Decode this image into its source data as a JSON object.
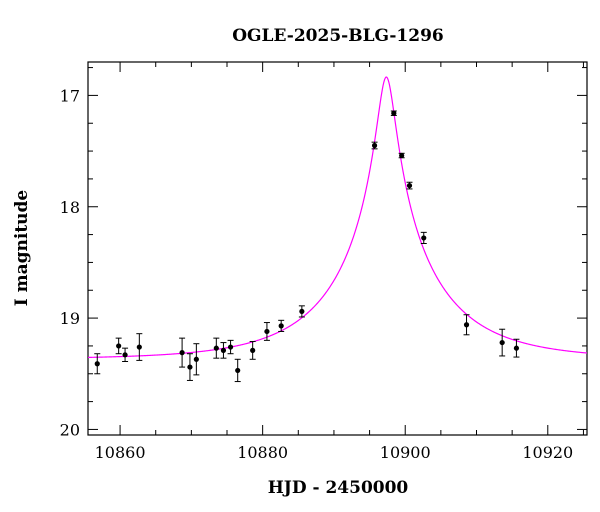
{
  "chart_data": {
    "type": "scatter",
    "title": "OGLE-2025-BLG-1296",
    "xlabel": "HJD - 2450000",
    "ylabel": "I magnitude",
    "xlim": [
      10855.5,
      10925.5
    ],
    "ylim": [
      20.05,
      16.7
    ],
    "y_inverted": true,
    "x_ticks": [
      10860,
      10880,
      10900,
      10920
    ],
    "y_ticks": [
      17,
      18,
      19,
      20
    ],
    "x_minor_step": 5,
    "y_minor_step": 0.25,
    "grid": false,
    "series": [
      {
        "kind": "points_with_errorbars",
        "color": "#000000",
        "points": [
          {
            "x": 10856.8,
            "y": 19.41,
            "err": 0.09
          },
          {
            "x": 10859.8,
            "y": 19.25,
            "err": 0.07
          },
          {
            "x": 10860.7,
            "y": 19.33,
            "err": 0.06
          },
          {
            "x": 10862.7,
            "y": 19.26,
            "err": 0.12
          },
          {
            "x": 10868.7,
            "y": 19.31,
            "err": 0.13
          },
          {
            "x": 10869.8,
            "y": 19.44,
            "err": 0.12
          },
          {
            "x": 10870.7,
            "y": 19.37,
            "err": 0.14
          },
          {
            "x": 10873.5,
            "y": 19.27,
            "err": 0.09
          },
          {
            "x": 10874.5,
            "y": 19.29,
            "err": 0.07
          },
          {
            "x": 10875.5,
            "y": 19.26,
            "err": 0.06
          },
          {
            "x": 10876.5,
            "y": 19.47,
            "err": 0.1
          },
          {
            "x": 10878.6,
            "y": 19.29,
            "err": 0.08
          },
          {
            "x": 10880.6,
            "y": 19.12,
            "err": 0.08
          },
          {
            "x": 10882.6,
            "y": 19.07,
            "err": 0.05
          },
          {
            "x": 10885.5,
            "y": 18.94,
            "err": 0.05
          },
          {
            "x": 10895.7,
            "y": 17.45,
            "err": 0.03
          },
          {
            "x": 10898.4,
            "y": 17.16,
            "err": 0.02
          },
          {
            "x": 10899.5,
            "y": 17.54,
            "err": 0.02
          },
          {
            "x": 10900.6,
            "y": 17.81,
            "err": 0.03
          },
          {
            "x": 10902.6,
            "y": 18.28,
            "err": 0.05
          },
          {
            "x": 10908.6,
            "y": 19.06,
            "err": 0.09
          },
          {
            "x": 10913.6,
            "y": 19.22,
            "err": 0.12
          },
          {
            "x": 10915.6,
            "y": 19.27,
            "err": 0.08
          }
        ]
      },
      {
        "kind": "model_curve",
        "color": "#ff00ff",
        "model": "pspl",
        "t0": 10897.35,
        "u0": 0.08,
        "tE": 14.5,
        "I_source": 19.6,
        "I_base": 19.37
      }
    ]
  }
}
